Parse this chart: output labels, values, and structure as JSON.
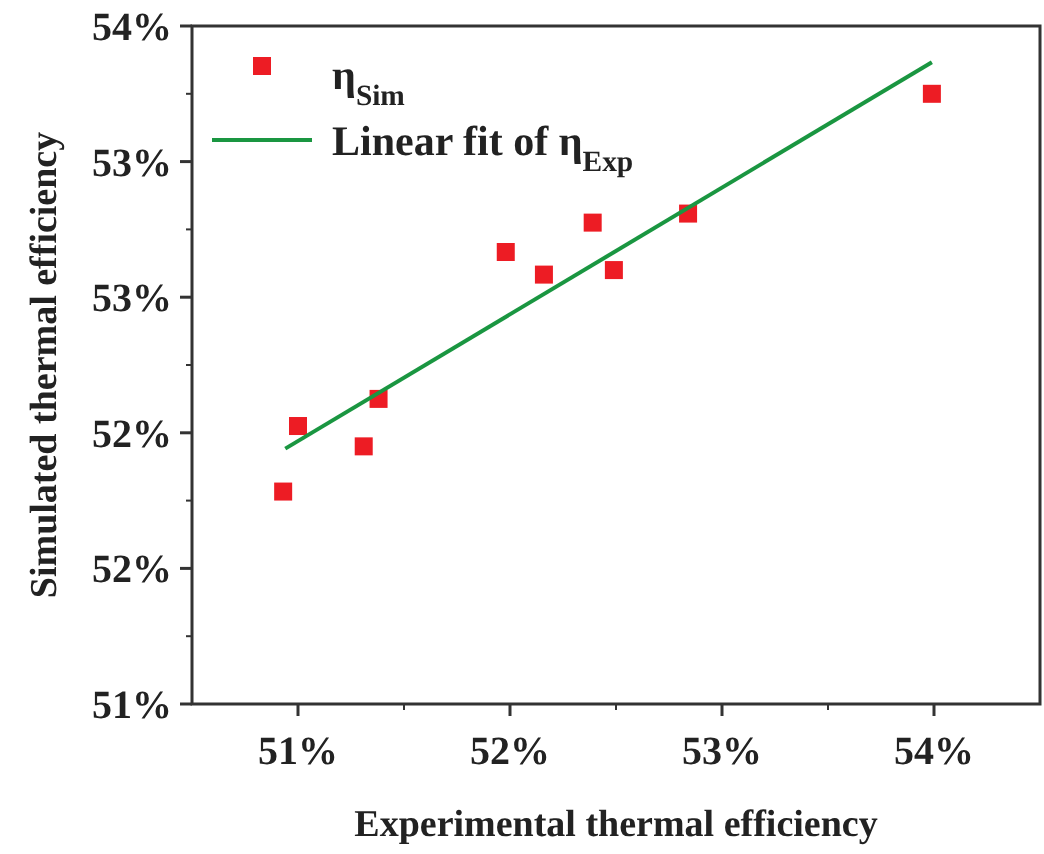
{
  "chart_data": {
    "type": "scatter",
    "xlabel": "Experimental thermal efficiency",
    "ylabel": "Simulated thermal efficiency",
    "xlim": [
      50.5,
      54.5
    ],
    "xticks": [
      {
        "value": 51,
        "label": "51%"
      },
      {
        "value": 52,
        "label": "52%"
      },
      {
        "value": 53,
        "label": "53%"
      },
      {
        "value": 54,
        "label": "54%"
      }
    ],
    "ylim": [
      51,
      54
    ],
    "yticks": [
      {
        "value": 51,
        "label": "51%"
      },
      {
        "value": 51.6,
        "label": "52%"
      },
      {
        "value": 52.2,
        "label": "52%"
      },
      {
        "value": 52.8,
        "label": "53%"
      },
      {
        "value": 53.4,
        "label": "53%"
      },
      {
        "value": 54,
        "label": "54%"
      }
    ],
    "grid": false,
    "legend": "top left",
    "marker": "square",
    "series": [
      {
        "name": "η$_{Sim}$",
        "color": "#ed1c24",
        "x": [
          50.93,
          51.0,
          51.31,
          51.38,
          51.98,
          52.16,
          52.39,
          52.49,
          52.84,
          53.99
        ],
        "values": [
          51.94,
          52.23,
          52.14,
          52.35,
          53.0,
          52.9,
          53.13,
          52.92,
          53.17,
          53.7
        ]
      },
      {
        "name": "Linear fit of η$_{Exp}$",
        "type": "line",
        "color": "#1a9641",
        "line_style": "solid",
        "marker": "none",
        "x": [
          50.94,
          53.99
        ],
        "values": [
          52.13,
          53.84
        ]
      }
    ]
  }
}
